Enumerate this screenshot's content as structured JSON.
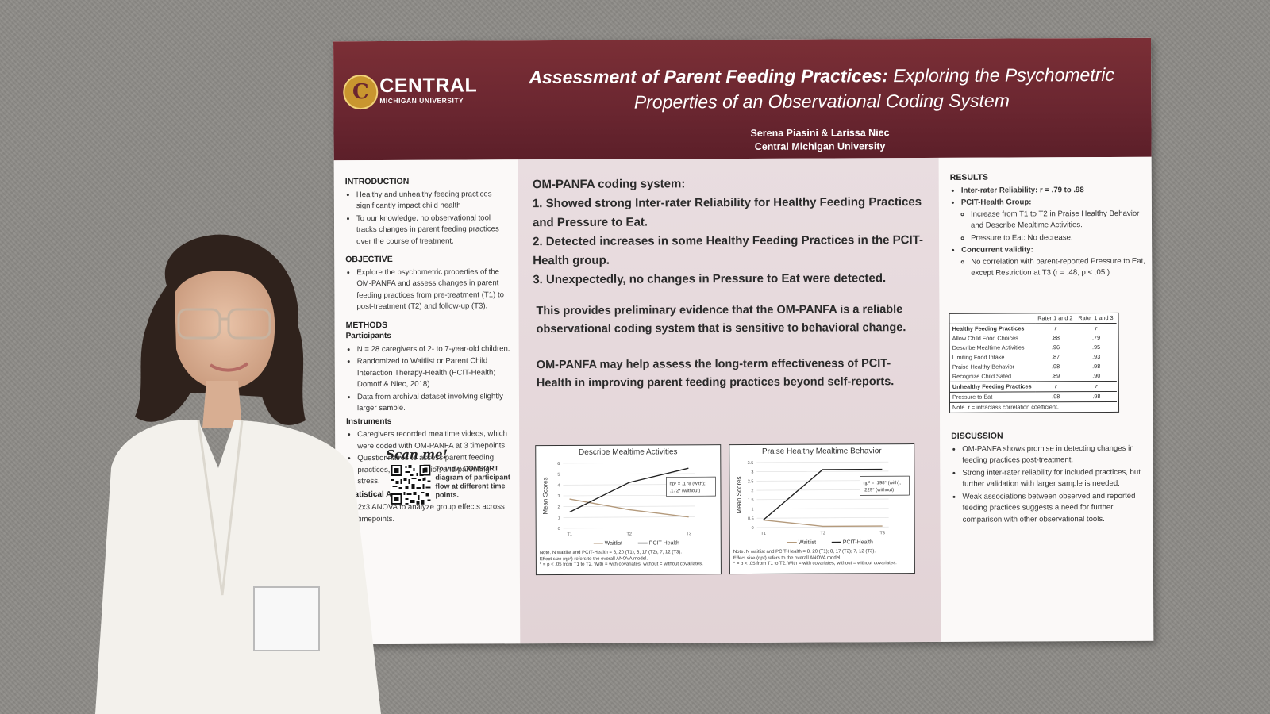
{
  "poster": {
    "title_bold": "Assessment of Parent Feeding Practices:",
    "title_rest": " Exploring the Psychometric Properties of an Observational Coding System",
    "authors": "Serena Piasini & Larissa Niec",
    "affiliation": "Central Michigan University",
    "logo": {
      "mark": "C",
      "name": "CENTRAL",
      "sub": "MICHIGAN UNIVERSITY"
    },
    "colors": {
      "maroon": "#6a2630",
      "gold": "#c9962f",
      "panel": "#e5d8db"
    }
  },
  "left": {
    "intro_h": "INTRODUCTION",
    "intro": [
      "Healthy and unhealthy feeding practices significantly impact child health",
      "To our knowledge, no observational tool tracks changes in parent feeding practices over the course of treatment."
    ],
    "objective_h": "OBJECTIVE",
    "objective": [
      "Explore the psychometric properties of the OM-PANFA and assess changes in parent feeding practices from pre-treatment (T1) to post-treatment (T2) and follow-up (T3)."
    ],
    "methods_h": "METHODS",
    "participants_h": "Participants",
    "participants": [
      "N = 28 caregivers of 2- to 7-year-old children.",
      "Randomized to Waitlist or Parent Child Interaction Therapy-Health (PCIT-Health; Domoff & Niec, 2018)",
      "Data from archival dataset involving slightly larger sample."
    ],
    "instruments_h": "Instruments",
    "instruments": [
      "Caregivers recorded mealtime videos, which were coded with OM-PANFA at 3 timepoints.",
      "Questionnaires to assess parent feeding practices, child behavior, and parenting stress."
    ],
    "stats_h": "Statistical Analysis",
    "stats": [
      "2x3 ANOVA to analyze group effects across timepoints."
    ],
    "scan": "Scan me!",
    "qr_text": "To view CONSORT diagram of participant flow at different time points."
  },
  "middle": {
    "heading": "OM-PANFA coding system:",
    "points": [
      "1. Showed strong Inter-rater Reliability for Healthy Feeding Practices and Pressure to Eat.",
      "2. Detected increases in some Healthy Feeding Practices in the PCIT-Health group.",
      "3. Unexpectedly, no changes in Pressure to Eat were detected."
    ],
    "p1": "This provides preliminary evidence that the OM-PANFA is a reliable observational coding system that is sensitive to behavioral change.",
    "p2": "OM-PANFA may help assess the long-term effectiveness of PCIT-Health in improving parent feeding practices beyond self-reports."
  },
  "chart_data": [
    {
      "type": "line",
      "title": "Describe Mealtime Activities",
      "ylabel": "Mean Scores",
      "categories": [
        "T1",
        "T2",
        "T3"
      ],
      "yticks": [
        "0",
        "1",
        "2",
        "3",
        "4",
        "5",
        "6"
      ],
      "ylim": [
        0,
        6
      ],
      "series": [
        {
          "name": "Waitlist",
          "values": [
            2.7,
            1.7,
            1.0
          ]
        },
        {
          "name": "PCIT-Health",
          "values": [
            1.5,
            4.2,
            5.5
          ]
        }
      ],
      "annotation": [
        "ηp² = .178 (with);",
        ".172* (without)"
      ],
      "note": [
        "Note. N waitlist and PCIT-Health = 8, 20 (T1); 8, 17 (T2); 7, 12 (T3).",
        "Effect size (ηp²) refers to the overall ANOVA model.",
        "* = p < .05 from T1 to T2. With = with covariates; without = without covariates."
      ]
    },
    {
      "type": "line",
      "title": "Praise Healthy Mealtime Behavior",
      "ylabel": "Mean Scores",
      "categories": [
        "T1",
        "T2",
        "T3"
      ],
      "yticks": [
        "0",
        "0.5",
        "1",
        "1.5",
        "2",
        "2.5",
        "3",
        "3.5"
      ],
      "ylim": [
        0,
        3.5
      ],
      "series": [
        {
          "name": "Waitlist",
          "values": [
            0.4,
            0.05,
            0.05
          ]
        },
        {
          "name": "PCIT-Health",
          "values": [
            0.4,
            3.1,
            3.1
          ]
        }
      ],
      "annotation": [
        "ηp² = .198* (with);",
        ".229* (without)"
      ],
      "note": [
        "Note. N waitlist and PCIT-Health = 8, 20 (T1); 8, 17 (T2); 7, 12 (T3).",
        "Effect size (ηp²) refers to the overall ANOVA model.",
        "* = p < .05 from T1 to T2. With = with covariates; without = without covariates."
      ]
    }
  ],
  "right": {
    "results_h": "RESULTS",
    "irr": "Inter-rater Reliability: r = .79 to .98",
    "pcit_h": "PCIT-Health Group:",
    "pcit": [
      "Increase from T1 to T2 in Praise Healthy Behavior and Describe Mealtime Activities.",
      "Pressure to Eat: No decrease."
    ],
    "conc_h": "Concurrent validity:",
    "conc": [
      "No correlation with parent-reported Pressure to Eat, except Restriction at T3 (r = .48, p < .05.)"
    ],
    "table": {
      "headers": [
        "",
        "Rater 1 and 2",
        "Rater 1 and 3"
      ],
      "group1": "Healthy Feeding Practices",
      "rows1": [
        [
          "Allow Child Food Choices",
          ".88",
          ".79"
        ],
        [
          "Describe Mealtime Activities",
          ".96",
          ".95"
        ],
        [
          "Limiting Food Intake",
          ".87",
          ".93"
        ],
        [
          "Praise Healthy Behavior",
          ".98",
          ".98"
        ],
        [
          "Recognize Child Sated",
          ".89",
          ".90"
        ]
      ],
      "group2": "Unhealthy Feeding Practices",
      "rows2": [
        [
          "Pressure to Eat",
          ".98",
          ".98"
        ]
      ],
      "r": "r",
      "note": "Note. r = intraclass correlation coefficient."
    },
    "discussion_h": "DISCUSSION",
    "discussion": [
      "OM-PANFA shows promise in detecting changes in feeding practices post-treatment.",
      "Strong inter-rater reliability for included practices, but further validation with larger sample is needed.",
      "Weak associations between observed and reported feeding practices suggests a need for further comparison with other observational tools."
    ]
  }
}
